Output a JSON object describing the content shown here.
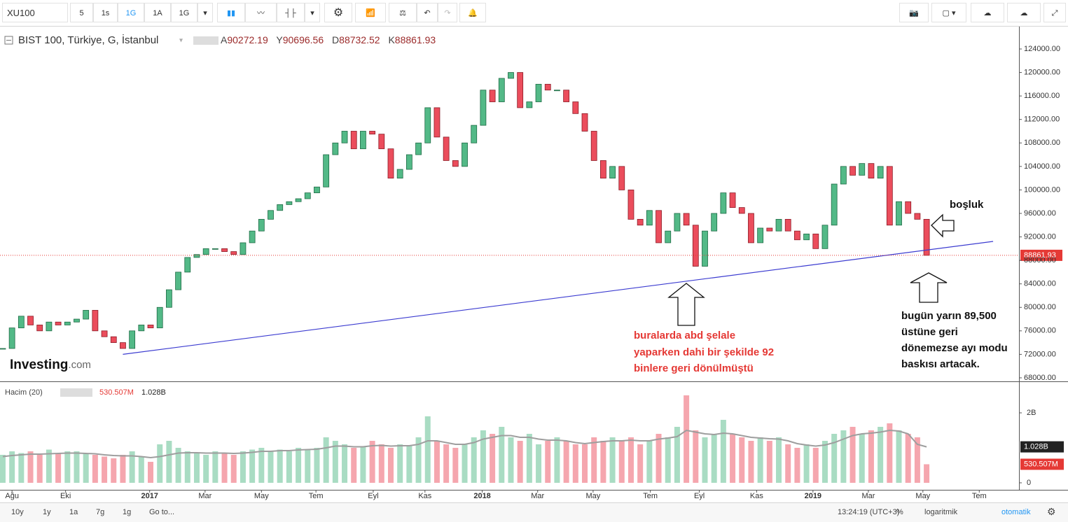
{
  "toolbar": {
    "symbol": "XU100",
    "intervals": [
      "5",
      "1s",
      "1G",
      "1A",
      "1G"
    ]
  },
  "chart_data": [
    {
      "type": "candlestick",
      "title": "BIST 100, Türkiye, G, İstanbul",
      "ohlc": [
        {
          "label": "A",
          "value": 90272.19
        },
        {
          "label": "Y",
          "value": 90696.56
        },
        {
          "label": "D",
          "value": 88732.52
        },
        {
          "label": "K",
          "value": 88861.93
        }
      ],
      "x": [
        0,
        1,
        2,
        3,
        4,
        5,
        6,
        7,
        8,
        9,
        10,
        11,
        12,
        13,
        14,
        15,
        16,
        17,
        18,
        19,
        20,
        21,
        22,
        23,
        24,
        25,
        26,
        27,
        28,
        29,
        30,
        31,
        32,
        33,
        34,
        35,
        36,
        37,
        38,
        39,
        40,
        41,
        42,
        43,
        44,
        45,
        46,
        47,
        48,
        49,
        50,
        51,
        52,
        53,
        54,
        55,
        56,
        57,
        58,
        59,
        60,
        61,
        62,
        63,
        64,
        65,
        66,
        67,
        68,
        69,
        70,
        71,
        72,
        73,
        74,
        75,
        76,
        77,
        78,
        79,
        80,
        81,
        82,
        83,
        84,
        85,
        86,
        87,
        88,
        89,
        90,
        91,
        92,
        93,
        94,
        95,
        96,
        97,
        98,
        99,
        100
      ],
      "values": [
        73000,
        76500,
        78500,
        77000,
        76000,
        77500,
        77000,
        77500,
        78000,
        79500,
        76000,
        75000,
        74000,
        73000,
        76000,
        77000,
        76500,
        80000,
        83000,
        86000,
        88500,
        89000,
        90000,
        90000,
        89500,
        89000,
        91000,
        93000,
        95000,
        96500,
        97500,
        98000,
        98500,
        99500,
        100500,
        106000,
        108000,
        110000,
        107000,
        110000,
        109500,
        107000,
        102000,
        103500,
        106000,
        108000,
        114000,
        109000,
        105000,
        104000,
        108000,
        111000,
        117000,
        115000,
        119000,
        120000,
        114000,
        115000,
        118000,
        117000,
        117000,
        115000,
        113000,
        110000,
        105000,
        102000,
        104000,
        100000,
        95000,
        94000,
        96500,
        91000,
        93000,
        96000,
        94000,
        87000,
        93000,
        96000,
        99500,
        97000,
        96000,
        91000,
        93500,
        93000,
        95000,
        93000,
        91500,
        92500,
        90000,
        94000,
        101000,
        104000,
        102500,
        104500,
        102000,
        104000,
        94000,
        98000,
        96000,
        95000,
        88861.93
      ],
      "up_color": "#53b987",
      "down_color": "#eb4d5c",
      "xlim": [
        -0.3,
        110
      ],
      "ylim": [
        67400,
        127575
      ],
      "xticks": [
        {
          "value": 1.0,
          "label": "Ağu"
        },
        {
          "value": 6.8,
          "label": "Eki"
        },
        {
          "value": 15.9,
          "label": "2017"
        },
        {
          "value": 21.9,
          "label": "Mar"
        },
        {
          "value": 28.0,
          "label": "May"
        },
        {
          "value": 33.9,
          "label": "Tem"
        },
        {
          "value": 40.1,
          "label": "Eyl"
        },
        {
          "value": 45.7,
          "label": "Kas"
        },
        {
          "value": 51.9,
          "label": "2018"
        },
        {
          "value": 57.9,
          "label": "Mar"
        },
        {
          "value": 63.9,
          "label": "May"
        },
        {
          "value": 70.1,
          "label": "Tem"
        },
        {
          "value": 75.4,
          "label": "Eyl"
        },
        {
          "value": 81.6,
          "label": "Kas"
        },
        {
          "value": 87.7,
          "label": "2019"
        },
        {
          "value": 93.7,
          "label": "Mar"
        },
        {
          "value": 99.6,
          "label": "May"
        },
        {
          "value": 105.7,
          "label": "Tem"
        }
      ],
      "yticks": [
        {
          "value": 124000,
          "label": "124000.00"
        },
        {
          "value": 120000,
          "label": "120000.00"
        },
        {
          "value": 116000,
          "label": "116000.00"
        },
        {
          "value": 112000,
          "label": "112000.00"
        },
        {
          "value": 108000,
          "label": "108000.00"
        },
        {
          "value": 104000,
          "label": "104000.00"
        },
        {
          "value": 100000,
          "label": "100000.00"
        },
        {
          "value": 96000,
          "label": "96000.00"
        },
        {
          "value": 92000,
          "label": "92000.00"
        },
        {
          "value": 88000,
          "label": "88000.00"
        },
        {
          "value": 84000,
          "label": "84000.00"
        },
        {
          "value": 80000,
          "label": "80000.00"
        },
        {
          "value": 76000,
          "label": "76000.00"
        },
        {
          "value": 72000,
          "label": "72000.00"
        },
        {
          "value": 68000,
          "label": "68000.00"
        }
      ],
      "last_price": {
        "value": 88861.93,
        "color": "#e53935"
      },
      "trendline": {
        "x": [
          13,
          107.2
        ],
        "y": [
          72000,
          91234
        ],
        "color": "#3b3bd0"
      }
    },
    {
      "type": "bar",
      "title": "Hacim (20)",
      "values": [
        0.8,
        0.9,
        0.85,
        0.9,
        0.8,
        0.95,
        0.85,
        0.9,
        0.9,
        0.85,
        0.8,
        0.75,
        0.7,
        0.8,
        0.9,
        0.75,
        0.6,
        1.1,
        1.2,
        1.0,
        0.9,
        0.85,
        0.8,
        0.9,
        0.85,
        0.8,
        0.9,
        0.95,
        1.0,
        0.9,
        0.95,
        0.9,
        1.0,
        0.95,
        1.0,
        1.3,
        1.2,
        1.1,
        1.0,
        1.05,
        1.2,
        1.1,
        1.0,
        1.1,
        1.05,
        1.3,
        1.9,
        1.2,
        1.1,
        1.0,
        1.1,
        1.3,
        1.5,
        1.4,
        1.6,
        1.3,
        1.2,
        1.4,
        1.1,
        1.2,
        1.3,
        1.2,
        1.1,
        1.1,
        1.3,
        1.2,
        1.3,
        1.2,
        1.3,
        1.1,
        1.2,
        1.4,
        1.3,
        1.6,
        2.5,
        1.5,
        1.3,
        1.4,
        1.8,
        1.4,
        1.3,
        1.2,
        1.3,
        1.2,
        1.3,
        1.1,
        1.0,
        1.1,
        1.0,
        1.2,
        1.4,
        1.5,
        1.6,
        1.4,
        1.5,
        1.6,
        1.7,
        1.5,
        1.4,
        1.3,
        0.530507
      ],
      "ma": [
        0.75,
        0.78,
        0.8,
        0.82,
        0.82,
        0.83,
        0.84,
        0.85,
        0.85,
        0.84,
        0.83,
        0.8,
        0.78,
        0.77,
        0.77,
        0.75,
        0.72,
        0.75,
        0.8,
        0.85,
        0.86,
        0.86,
        0.85,
        0.85,
        0.85,
        0.84,
        0.85,
        0.87,
        0.9,
        0.9,
        0.92,
        0.92,
        0.94,
        0.95,
        0.96,
        1.0,
        1.05,
        1.05,
        1.03,
        1.03,
        1.06,
        1.07,
        1.05,
        1.06,
        1.06,
        1.1,
        1.2,
        1.2,
        1.15,
        1.1,
        1.1,
        1.15,
        1.25,
        1.3,
        1.35,
        1.35,
        1.3,
        1.3,
        1.25,
        1.22,
        1.22,
        1.2,
        1.15,
        1.12,
        1.15,
        1.18,
        1.2,
        1.2,
        1.22,
        1.2,
        1.2,
        1.25,
        1.28,
        1.32,
        1.5,
        1.45,
        1.4,
        1.38,
        1.42,
        1.4,
        1.35,
        1.3,
        1.28,
        1.26,
        1.25,
        1.2,
        1.12,
        1.08,
        1.05,
        1.08,
        1.15,
        1.25,
        1.35,
        1.4,
        1.42,
        1.45,
        1.5,
        1.48,
        1.4,
        1.1,
        1.028
      ],
      "up_color": "#a9dcc3",
      "down_color": "#f5a6ae",
      "ma_color": "#9e9e9e",
      "ylim": [
        0,
        2.8
      ],
      "yticks": [
        {
          "value": 2,
          "label": "2B"
        },
        0
      ],
      "last_volume": {
        "value": 0.530507,
        "label": "530.507M",
        "color": "#e53935"
      },
      "last_ma": {
        "value": 1.028,
        "label": "1.028B",
        "color": "#222222"
      }
    }
  ],
  "logo": {
    "name": "Investing",
    "suffix": ".com"
  },
  "annotations": {
    "gap": "boşluk",
    "red_note": [
      "buralarda abd şelale",
      "yaparken dahi bir şekilde 92",
      "binlere geri dönülmüştü"
    ],
    "black_note": [
      "bugün yarın 89,500",
      "üstüne geri",
      "dönemezse ayı modu",
      "baskısı artacak."
    ]
  },
  "bottom_bar": {
    "ranges": [
      "10y",
      "1y",
      "1a",
      "7g",
      "1g"
    ],
    "goto": "Go to...",
    "time": "13:24:19 (UTC+3)",
    "percent": "%",
    "log": "logaritmik",
    "auto": "otomatik"
  }
}
